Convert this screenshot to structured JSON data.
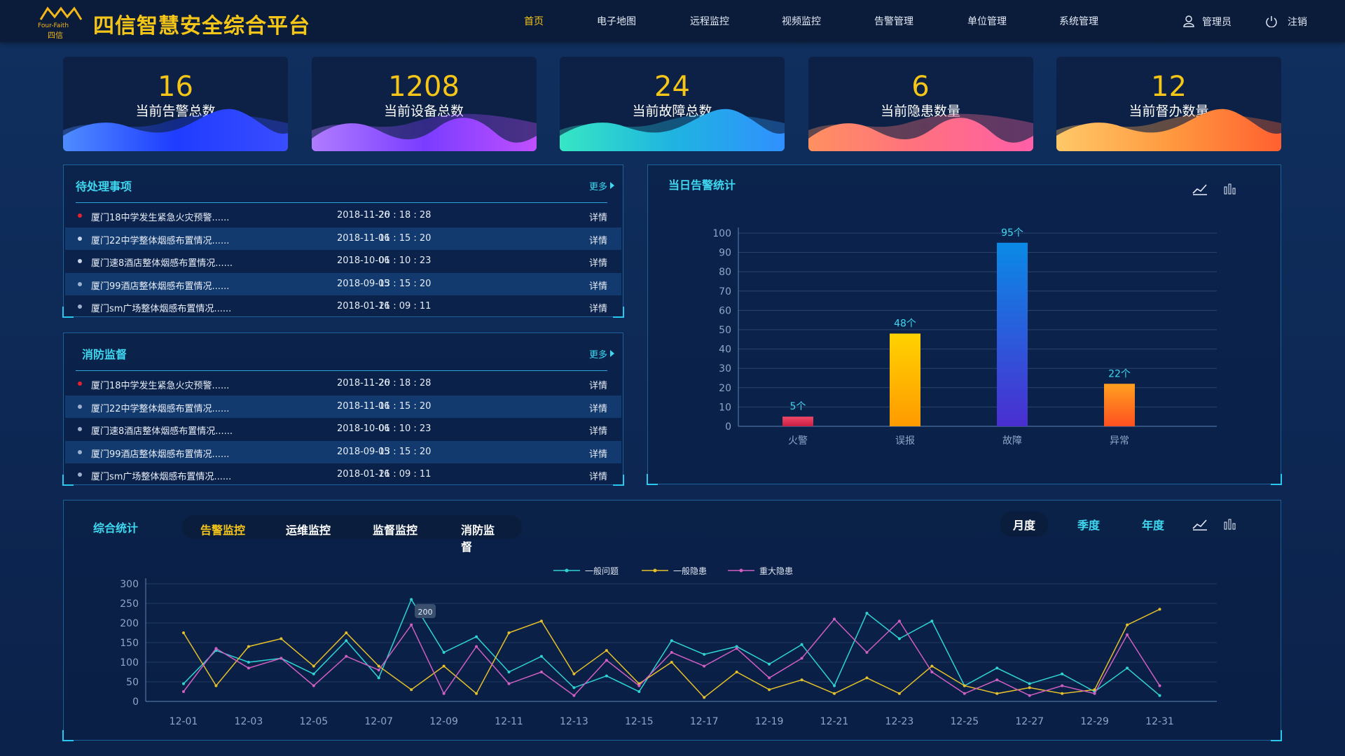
{
  "header": {
    "logo_en": "Four-Faith",
    "logo_cn": "四信",
    "title": "四信智慧安全综合平台",
    "nav": [
      "首页",
      "电子地图",
      "远程监控",
      "视频监控",
      "告警管理",
      "单位管理",
      "系统管理"
    ],
    "user": "管理员",
    "logout": "注销"
  },
  "kpis": [
    {
      "value": 16,
      "label": "当前告警总数"
    },
    {
      "value": 1208,
      "label": "当前设备总数"
    },
    {
      "value": 24,
      "label": "当前故障总数"
    },
    {
      "value": 6,
      "label": "当前隐患数量"
    },
    {
      "value": 12,
      "label": "当前督办数量"
    }
  ],
  "lists": [
    {
      "title": "待处理事项",
      "more": "更多",
      "rows": [
        {
          "text": "厦门18中学发生紧急火灾预警......",
          "date": "2018-11-26",
          "time": "20 : 18 : 28",
          "action": "详情"
        },
        {
          "text": "厦门22中学整体烟感布置情况......",
          "date": "2018-11-06",
          "time": "11 : 15 : 20",
          "action": "详情"
        },
        {
          "text": "厦门速8酒店整体烟感布置情况......",
          "date": "2018-10-06",
          "time": "01 : 10 : 23",
          "action": "详情"
        },
        {
          "text": "厦门99酒店整体烟感布置情况......",
          "date": "2018-09-05",
          "time": "13 : 15 : 20",
          "action": "详情"
        },
        {
          "text": "厦门sm广场整体烟感布置情况......",
          "date": "2018-01-16",
          "time": "21 : 09 : 11",
          "action": "详情"
        }
      ]
    },
    {
      "title": "消防监督",
      "more": "更多",
      "rows": [
        {
          "text": "厦门18中学发生紧急火灾预警......",
          "date": "2018-11-26",
          "time": "20 : 18 : 28",
          "action": "详情"
        },
        {
          "text": "厦门22中学整体烟感布置情况......",
          "date": "2018-11-06",
          "time": "11 : 15 : 20",
          "action": "详情"
        },
        {
          "text": "厦门速8酒店整体烟感布置情况......",
          "date": "2018-10-06",
          "time": "01 : 10 : 23",
          "action": "详情"
        },
        {
          "text": "厦门99酒店整体烟感布置情况......",
          "date": "2018-09-05",
          "time": "13 : 15 : 20",
          "action": "详情"
        },
        {
          "text": "厦门sm广场整体烟感布置情况......",
          "date": "2018-01-16",
          "time": "21 : 09 : 11",
          "action": "详情"
        }
      ]
    }
  ],
  "chart_data": [
    {
      "type": "bar",
      "title": "当日告警统计",
      "categories": [
        "火警",
        "误报",
        "故障",
        "异常"
      ],
      "values": [
        5,
        48,
        95,
        22
      ],
      "value_labels": [
        "5个",
        "48个",
        "95个",
        "22个"
      ],
      "gradients": [
        [
          "#f04868",
          "#c81e44"
        ],
        [
          "#ffd200",
          "#ff9a00"
        ],
        [
          "#0a8ae6",
          "#4a2ed0"
        ],
        [
          "#ffa020",
          "#ff5020"
        ]
      ],
      "ylim": [
        0,
        100
      ],
      "yticks": [
        0,
        10,
        20,
        30,
        40,
        50,
        60,
        70,
        80,
        90,
        100
      ],
      "grid": true
    },
    {
      "type": "line",
      "title": "综合统计",
      "tabs": [
        "告警监控",
        "运维监控",
        "监督监控",
        "消防监督"
      ],
      "periods": [
        "月度",
        "季度",
        "年度"
      ],
      "categories": [
        "12-01",
        null,
        "12-03",
        null,
        "12-05",
        null,
        "12-07",
        null,
        "12-09",
        null,
        "12-11",
        null,
        "12-13",
        null,
        "12-15",
        null,
        "12-17",
        null,
        "12-19",
        null,
        "12-21",
        null,
        "12-23",
        null,
        "12-25",
        null,
        "12-27",
        null,
        "12-29",
        null,
        "12-31"
      ],
      "series": [
        {
          "name": "一般问题",
          "color": "#2ed3d3",
          "values": [
            45,
            130,
            100,
            110,
            70,
            155,
            60,
            260,
            125,
            165,
            75,
            115,
            35,
            65,
            25,
            155,
            120,
            140,
            95,
            145,
            40,
            225,
            160,
            205,
            40,
            85,
            45,
            70,
            25,
            85,
            15
          ]
        },
        {
          "name": "一般隐患",
          "color": "#e6c02a",
          "values": [
            175,
            40,
            140,
            160,
            90,
            175,
            90,
            30,
            90,
            20,
            175,
            205,
            70,
            130,
            45,
            100,
            10,
            75,
            30,
            55,
            20,
            60,
            20,
            90,
            40,
            20,
            35,
            20,
            30,
            195,
            235
          ]
        },
        {
          "name": "重大隐患",
          "color": "#d05fc2",
          "values": [
            25,
            135,
            85,
            110,
            40,
            115,
            80,
            195,
            20,
            140,
            45,
            75,
            15,
            105,
            40,
            125,
            90,
            135,
            60,
            110,
            210,
            125,
            205,
            75,
            20,
            55,
            15,
            40,
            20,
            170,
            40
          ]
        }
      ],
      "ylim": [
        0,
        300
      ],
      "yticks": [
        0,
        50,
        100,
        150,
        200,
        250,
        300
      ],
      "grid": true,
      "annotations": [
        "200"
      ]
    }
  ]
}
